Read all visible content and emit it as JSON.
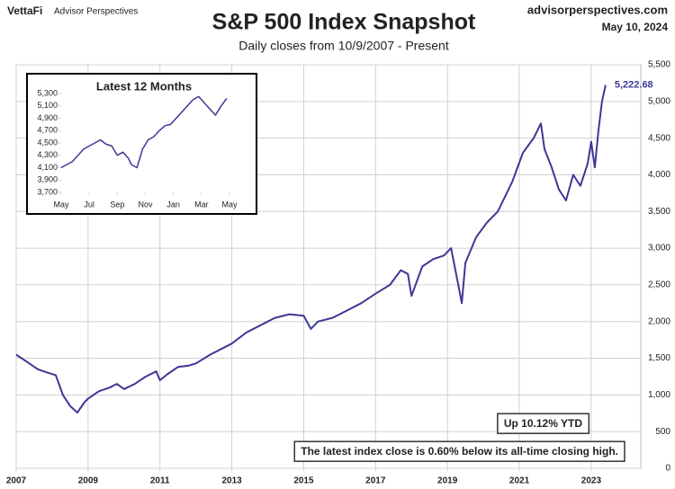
{
  "chart_data": [
    {
      "type": "line",
      "title": "S&P 500 Index Snapshot",
      "subtitle": "Daily closes from 10/9/2007 - Present",
      "brand": "VettaFi",
      "brand_sub": "Advisor Perspectives",
      "source": "advisorperspectives.com",
      "date": "May 10, 2024",
      "annotations": [
        "Up 10.12% YTD",
        "The latest index close is 0.60% below its all-time closing high."
      ],
      "color": "#3d3896",
      "grid": true,
      "x": [
        2007.0,
        2007.3,
        2007.6,
        2007.9,
        2008.1,
        2008.3,
        2008.5,
        2008.7,
        2008.9,
        2009.0,
        2009.3,
        2009.6,
        2009.8,
        2010.0,
        2010.3,
        2010.6,
        2010.9,
        2011.0,
        2011.2,
        2011.5,
        2011.8,
        2012.0,
        2012.4,
        2012.8,
        2013.0,
        2013.4,
        2013.8,
        2014.2,
        2014.6,
        2015.0,
        2015.2,
        2015.4,
        2015.8,
        2016.2,
        2016.6,
        2017.0,
        2017.4,
        2017.7,
        2017.9,
        2018.0,
        2018.3,
        2018.6,
        2018.9,
        2019.1,
        2019.3,
        2019.4,
        2019.5,
        2019.8,
        2020.1,
        2020.4,
        2020.8,
        2021.1,
        2021.4,
        2021.6,
        2021.7,
        2021.9,
        2022.1,
        2022.3,
        2022.5,
        2022.7,
        2022.9,
        2023.0,
        2023.1,
        2023.2,
        2023.3,
        2023.4
      ],
      "values": [
        1550,
        1450,
        1350,
        1300,
        1270,
        1000,
        850,
        760,
        900,
        950,
        1050,
        1100,
        1150,
        1080,
        1150,
        1250,
        1320,
        1200,
        1280,
        1380,
        1400,
        1430,
        1550,
        1650,
        1700,
        1850,
        1950,
        2050,
        2100,
        2080,
        1900,
        2000,
        2050,
        2150,
        2250,
        2380,
        2500,
        2700,
        2650,
        2350,
        2750,
        2850,
        2900,
        3000,
        2500,
        2250,
        2800,
        3150,
        3350,
        3500,
        3900,
        4300,
        4500,
        4700,
        4350,
        4100,
        3800,
        3650,
        4000,
        3850,
        4150,
        4450,
        4100,
        4600,
        5000,
        5222.68
      ],
      "value_labels": [
        null,
        null,
        null,
        null,
        null,
        null,
        null,
        null,
        null,
        null,
        null,
        null,
        null,
        null,
        null,
        null,
        null,
        null,
        null,
        null,
        null,
        null,
        null,
        null,
        null,
        null,
        null,
        null,
        null,
        null,
        null,
        null,
        null,
        null,
        null,
        null,
        null,
        null,
        null,
        null,
        null,
        null,
        null,
        null,
        null,
        null,
        null,
        null,
        null,
        null,
        null,
        null,
        null,
        null,
        null,
        null,
        null,
        null,
        null,
        null,
        null,
        null,
        null,
        null,
        null,
        "5,222.68"
      ],
      "xlim": [
        2007,
        2024.38
      ],
      "xticks": [
        2007,
        2009,
        2011,
        2013,
        2015,
        2017,
        2019,
        2021,
        2023
      ],
      "ylim": [
        0,
        5500
      ],
      "yticks": [
        0,
        500,
        {
          "value": 1000,
          "label": "1,000"
        },
        {
          "value": 1500,
          "label": "1,500"
        },
        {
          "value": 2000,
          "label": "2,000"
        },
        {
          "value": 2500,
          "label": "2,500"
        },
        {
          "value": 3000,
          "label": "3,000"
        },
        {
          "value": 3500,
          "label": "3,500"
        },
        {
          "value": 4000,
          "label": "4,000"
        },
        {
          "value": 4500,
          "label": "4,500"
        },
        {
          "value": 5000,
          "label": "5,000"
        },
        {
          "value": 5500,
          "label": "5,500"
        }
      ]
    },
    {
      "type": "line",
      "title": "Latest 12 Months",
      "color": "#3d3896",
      "x": [
        0,
        0.4,
        0.8,
        1.2,
        1.6,
        2.0,
        2.4,
        2.8,
        3.2,
        3.6,
        4.0,
        4.4,
        4.8,
        5.0,
        5.4,
        5.8,
        6.2,
        6.6,
        7.0,
        7.4,
        7.8,
        8.2,
        8.6,
        9.0,
        9.4,
        9.8,
        10.2,
        10.6,
        11.0,
        11.4,
        11.8
      ],
      "values": [
        4100,
        4150,
        4200,
        4300,
        4400,
        4450,
        4500,
        4550,
        4480,
        4450,
        4300,
        4350,
        4250,
        4150,
        4100,
        4400,
        4550,
        4600,
        4700,
        4780,
        4800,
        4900,
        5000,
        5100,
        5200,
        5250,
        5150,
        5050,
        4950,
        5100,
        5220
      ],
      "xlim": [
        0,
        12
      ],
      "xticks": [
        {
          "value": 0,
          "label": "May"
        },
        {
          "value": 2,
          "label": "Jul"
        },
        {
          "value": 4,
          "label": "Sep"
        },
        {
          "value": 6,
          "label": "Nov"
        },
        {
          "value": 8,
          "label": "Jan"
        },
        {
          "value": 10,
          "label": "Mar"
        },
        {
          "value": 12,
          "label": "May"
        }
      ],
      "ylim": [
        3700,
        5300
      ],
      "yticks": [
        {
          "value": 3700,
          "label": "3,700"
        },
        {
          "value": 3900,
          "label": "3,900"
        },
        {
          "value": 4100,
          "label": "4,100"
        },
        {
          "value": 4300,
          "label": "4,300"
        },
        {
          "value": 4500,
          "label": "4,500"
        },
        {
          "value": 4700,
          "label": "4,700"
        },
        {
          "value": 4900,
          "label": "4,900"
        },
        {
          "value": 5100,
          "label": "5,100"
        },
        {
          "value": 5300,
          "label": "5,300"
        }
      ]
    }
  ]
}
